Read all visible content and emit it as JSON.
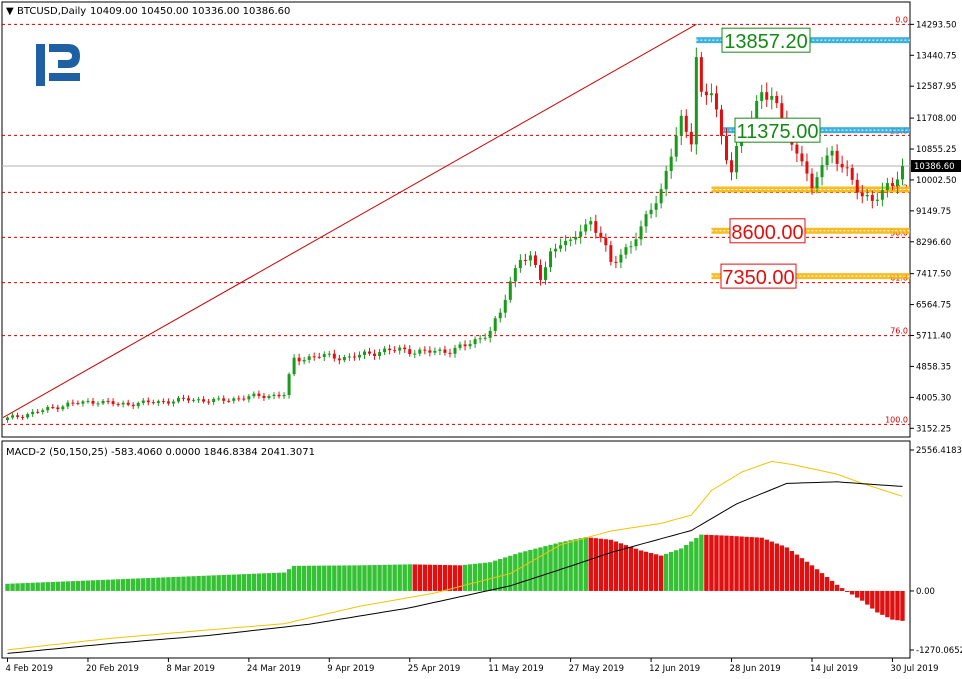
{
  "header": {
    "arrow": "▼",
    "symbol_tf": "BTCUSD,Daily",
    "ohlc": "10409.00 10450.00 10336.00 10386.60"
  },
  "logo": {
    "name": "brand-logo-r",
    "color": "#1f5fa3"
  },
  "price_axis": {
    "ticks": [
      "14293.50",
      "13440.75",
      "12587.95",
      "11708.00",
      "10855.25",
      "10002.50",
      "9149.75",
      "8296.60",
      "7417.50",
      "6564.75",
      "5711.40",
      "4858.35",
      "4005.30",
      "3152.25"
    ],
    "current_price": "10386.60"
  },
  "fibonacci": {
    "color": "#d00000",
    "levels": [
      {
        "label": "0.0",
        "price": 14293.5
      },
      {
        "label": "23.6",
        "price": 11230
      },
      {
        "label": "38.2",
        "price": 9660
      },
      {
        "label": "50.0",
        "price": 8420
      },
      {
        "label": "61.8",
        "price": 7170
      },
      {
        "label": "76.0",
        "price": 5710
      },
      {
        "label": "100.0",
        "price": 3260
      }
    ]
  },
  "trend_line": {
    "from": {
      "date": "4 Feb 2019",
      "price": 3450
    },
    "to": {
      "date": "26 Jun 2019",
      "price": 14293.5
    }
  },
  "price_targets": [
    {
      "text": "13857.20",
      "price": 13857.2,
      "color": "#138a13",
      "band": "#1aa3d6"
    },
    {
      "text": "11375.00",
      "price": 11375.0,
      "color": "#138a13",
      "band": "#1aa3d6"
    },
    {
      "text": "",
      "price": 9740,
      "color": "",
      "band": "#f5b300"
    },
    {
      "text": "8600.00",
      "price": 8600.0,
      "color": "#e01010",
      "band": "#f5b300"
    },
    {
      "text": "7350.00",
      "price": 7350.0,
      "color": "#e01010",
      "band": "#f5b300"
    }
  ],
  "macd": {
    "title": "MACD-2 (50,150,25) -583.4060 0.0000 1846.8384 2041.3071",
    "ticks": [
      "2556.4183",
      "0.00",
      "-1270.0652"
    ],
    "colors": {
      "up": "#34c234",
      "down": "#e01010",
      "signal": "#f2c500",
      "line": "#000000"
    }
  },
  "time_axis": {
    "labels": [
      "4 Feb 2019",
      "20 Feb 2019",
      "8 Mar 2019",
      "24 Mar 2019",
      "9 Apr 2019",
      "25 Apr 2019",
      "11 May 2019",
      "27 May 2019",
      "12 Jun 2019",
      "28 Jun 2019",
      "14 Jul 2019",
      "30 Jul 2019"
    ]
  },
  "chart_data": {
    "type": "candlestick",
    "symbol": "BTCUSD",
    "timeframe": "Daily",
    "ylim": [
      2940,
      14800
    ],
    "x_dates": [
      "4 Feb 2019",
      "20 Feb 2019",
      "8 Mar 2019",
      "24 Mar 2019",
      "9 Apr 2019",
      "25 Apr 2019",
      "11 May 2019",
      "27 May 2019",
      "12 Jun 2019",
      "28 Jun 2019",
      "14 Jul 2019",
      "30 Jul 2019"
    ],
    "close_trajectory": [
      [
        0,
        3420
      ],
      [
        5,
        3580
      ],
      [
        12,
        3820
      ],
      [
        18,
        3900
      ],
      [
        22,
        3810
      ],
      [
        30,
        3880
      ],
      [
        36,
        3950
      ],
      [
        42,
        3910
      ],
      [
        48,
        4020
      ],
      [
        55,
        4080
      ],
      [
        57,
        5050
      ],
      [
        62,
        5150
      ],
      [
        68,
        5100
      ],
      [
        74,
        5280
      ],
      [
        78,
        5320
      ],
      [
        83,
        5250
      ],
      [
        88,
        5300
      ],
      [
        91,
        5420
      ],
      [
        94,
        5650
      ],
      [
        96,
        5850
      ],
      [
        98,
        6300
      ],
      [
        100,
        7200
      ],
      [
        102,
        7900
      ],
      [
        104,
        7800
      ],
      [
        106,
        7300
      ],
      [
        108,
        8000
      ],
      [
        110,
        8300
      ],
      [
        112,
        8200
      ],
      [
        114,
        8700
      ],
      [
        116,
        8850
      ],
      [
        118,
        8400
      ],
      [
        120,
        7700
      ],
      [
        122,
        8000
      ],
      [
        124,
        8200
      ],
      [
        126,
        8600
      ],
      [
        128,
        9300
      ],
      [
        130,
        9700
      ],
      [
        132,
        10700
      ],
      [
        134,
        11600
      ],
      [
        136,
        11200
      ],
      [
        137,
        13400
      ],
      [
        138,
        12300
      ],
      [
        140,
        12400
      ],
      [
        142,
        11200
      ],
      [
        144,
        10300
      ],
      [
        146,
        11300
      ],
      [
        148,
        11600
      ],
      [
        150,
        12600
      ],
      [
        152,
        12200
      ],
      [
        154,
        11700
      ],
      [
        156,
        10900
      ],
      [
        158,
        10700
      ],
      [
        160,
        9600
      ],
      [
        162,
        10500
      ],
      [
        164,
        10800
      ],
      [
        166,
        10400
      ],
      [
        168,
        9900
      ],
      [
        170,
        9600
      ],
      [
        172,
        9500
      ],
      [
        174,
        9600
      ],
      [
        176,
        9900
      ],
      [
        178,
        10386.6
      ]
    ],
    "macd_histogram_trajectory": [
      [
        0,
        140
      ],
      [
        20,
        220
      ],
      [
        40,
        300
      ],
      [
        55,
        360
      ],
      [
        57,
        490
      ],
      [
        70,
        500
      ],
      [
        80,
        520
      ],
      [
        90,
        500
      ],
      [
        96,
        560
      ],
      [
        102,
        750
      ],
      [
        110,
        950
      ],
      [
        115,
        1050
      ],
      [
        120,
        1000
      ],
      [
        126,
        790
      ],
      [
        130,
        690
      ],
      [
        134,
        830
      ],
      [
        138,
        1100
      ],
      [
        143,
        1080
      ],
      [
        150,
        1040
      ],
      [
        155,
        850
      ],
      [
        160,
        500
      ],
      [
        165,
        120
      ],
      [
        167,
        -10
      ],
      [
        170,
        -190
      ],
      [
        173,
        -420
      ],
      [
        176,
        -560
      ],
      [
        178,
        -583.406
      ]
    ],
    "macd_signal_trajectory": [
      [
        0,
        -1150
      ],
      [
        20,
        -930
      ],
      [
        40,
        -760
      ],
      [
        55,
        -640
      ],
      [
        70,
        -300
      ],
      [
        85,
        -40
      ],
      [
        100,
        340
      ],
      [
        110,
        900
      ],
      [
        120,
        1170
      ],
      [
        130,
        1320
      ],
      [
        136,
        1480
      ],
      [
        140,
        1960
      ],
      [
        146,
        2320
      ],
      [
        152,
        2530
      ],
      [
        156,
        2470
      ],
      [
        165,
        2280
      ],
      [
        170,
        2100
      ],
      [
        178,
        1846.8384
      ]
    ],
    "macd_line_trajectory": [
      [
        0,
        -1220
      ],
      [
        20,
        -1030
      ],
      [
        40,
        -870
      ],
      [
        60,
        -650
      ],
      [
        80,
        -330
      ],
      [
        100,
        100
      ],
      [
        110,
        420
      ],
      [
        120,
        750
      ],
      [
        130,
        1020
      ],
      [
        136,
        1180
      ],
      [
        145,
        1700
      ],
      [
        155,
        2100
      ],
      [
        165,
        2130
      ],
      [
        172,
        2080
      ],
      [
        178,
        2041.3071
      ]
    ],
    "macd_ylim": [
      -1270.0652,
      2556.4183
    ]
  }
}
